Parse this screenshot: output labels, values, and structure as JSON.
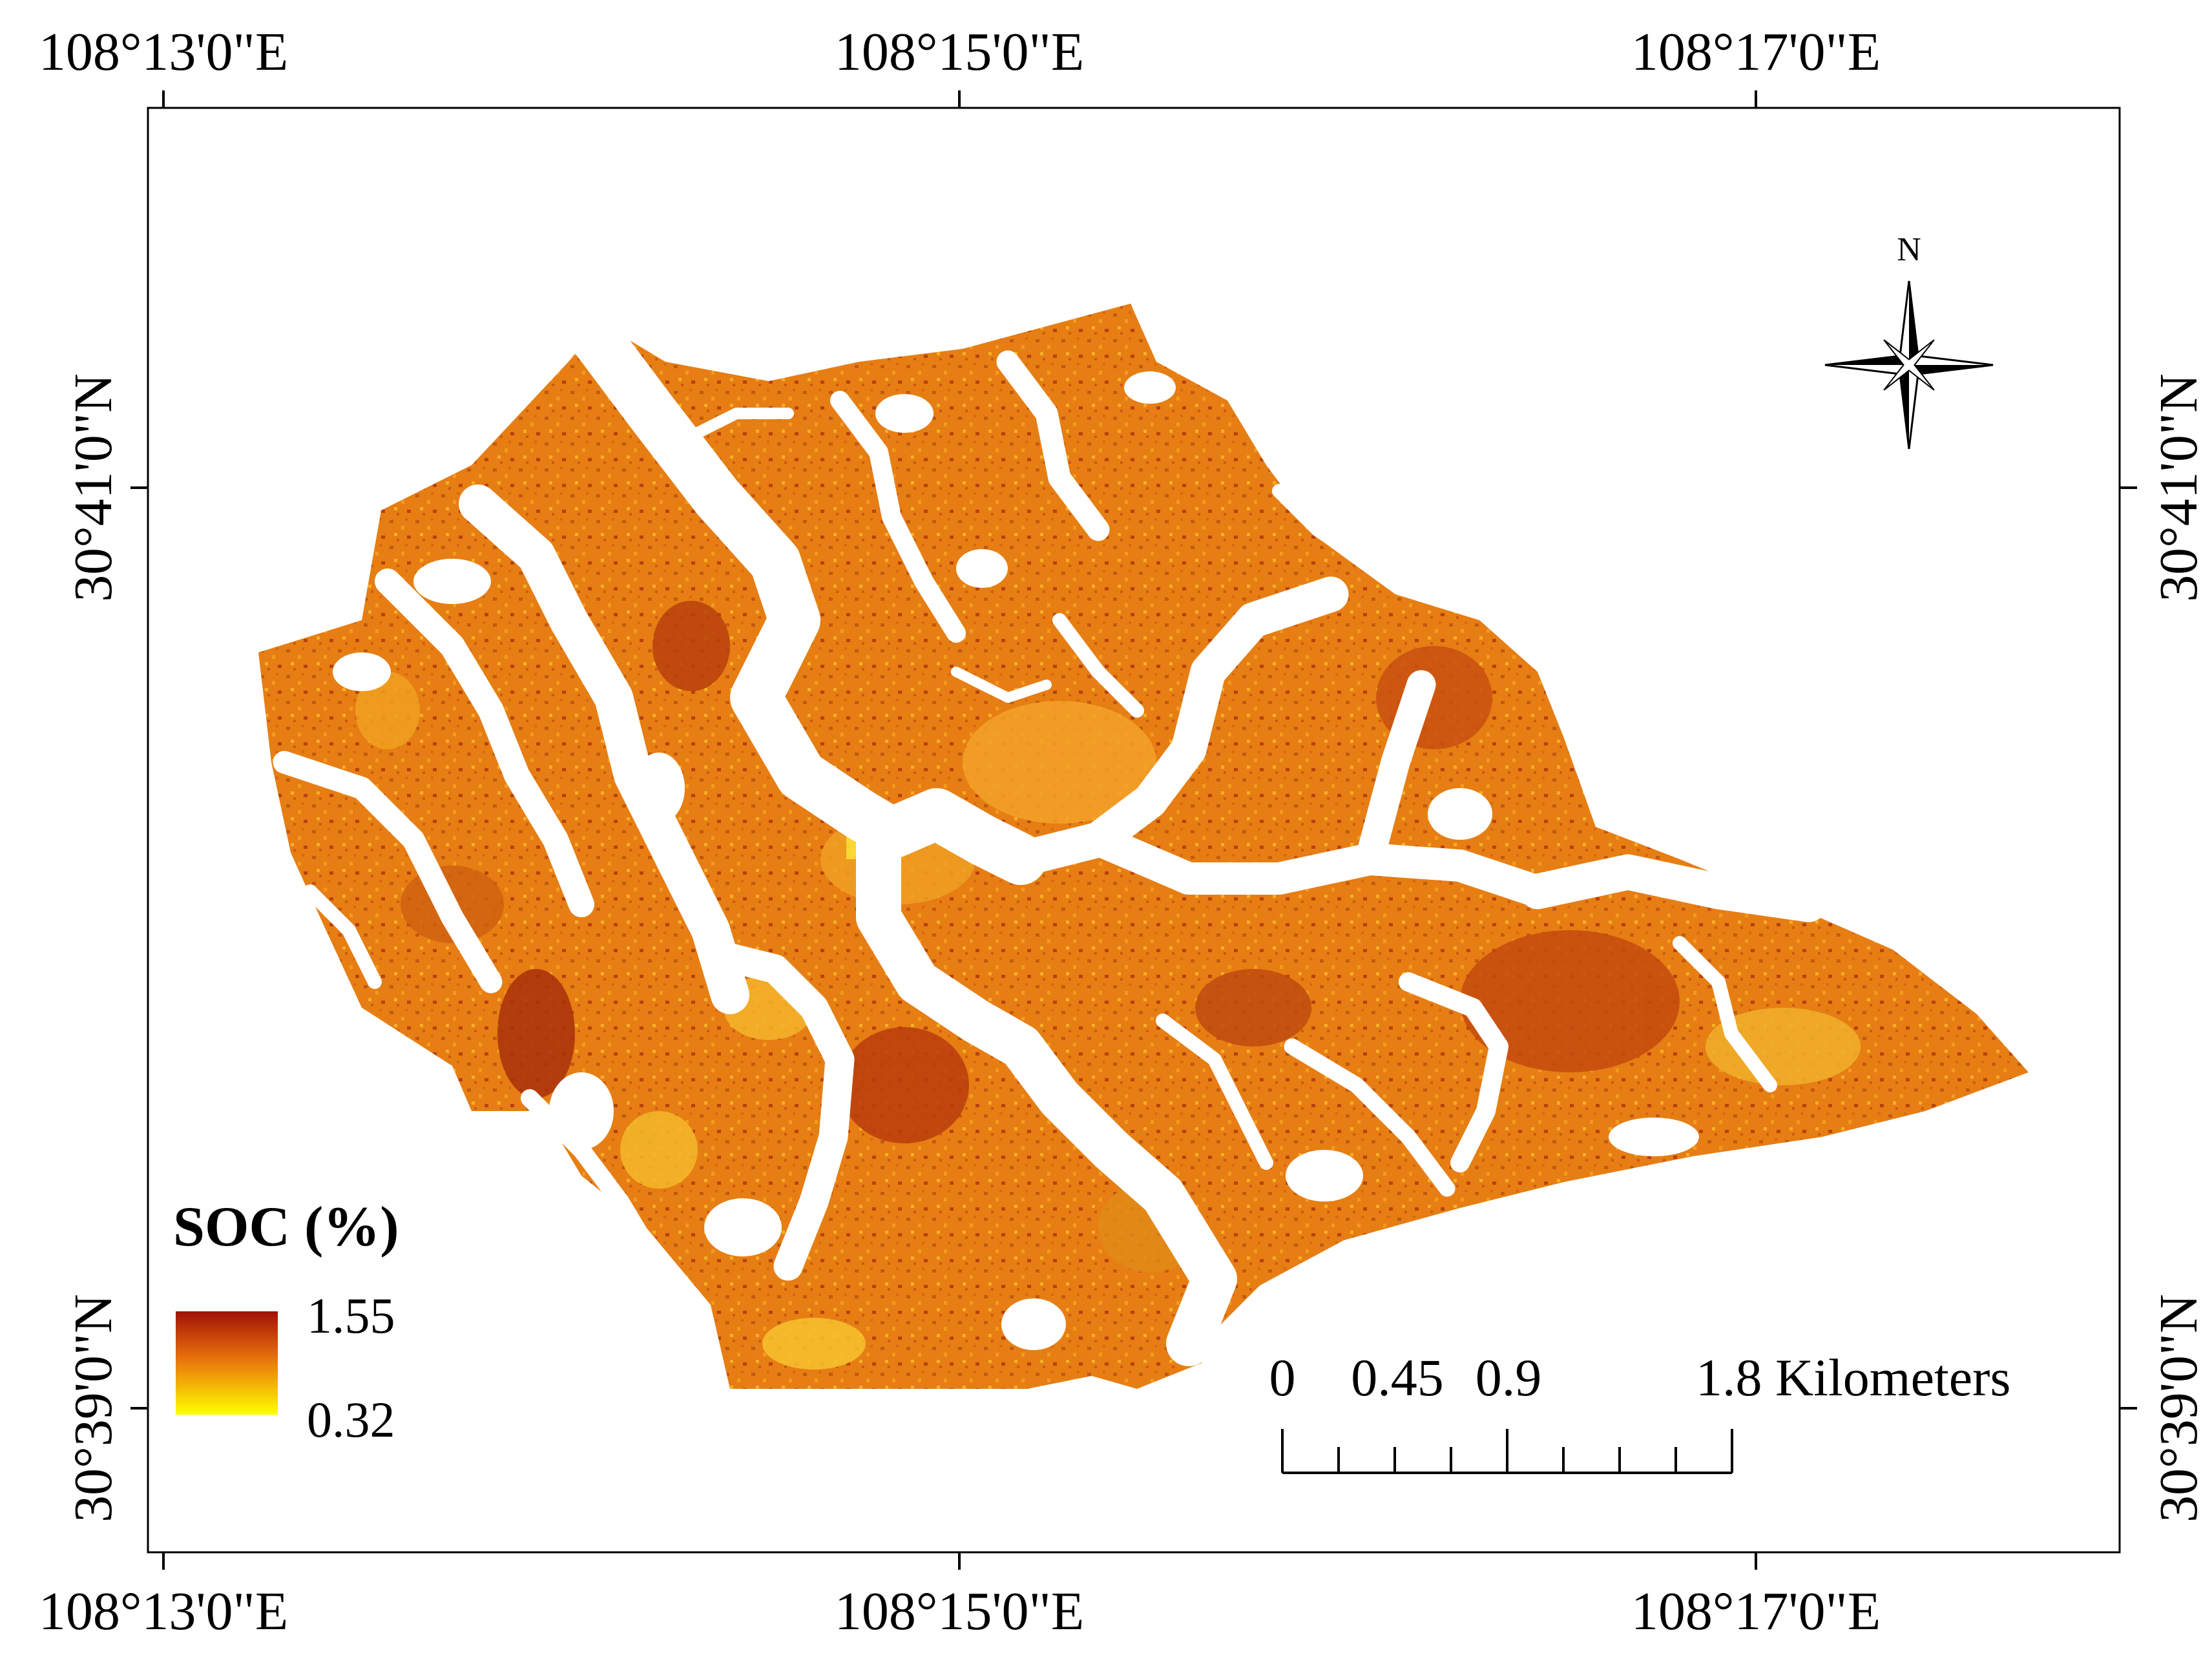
{
  "map": {
    "top_labels": [
      "108°13'0\"E",
      "108°15'0\"E",
      "108°17'0\"E"
    ],
    "bottom_labels": [
      "108°13'0\"E",
      "108°15'0\"E",
      "108°17'0\"E"
    ],
    "left_labels": [
      "30°41'0\"N",
      "30°39'0\"N"
    ],
    "right_labels": [
      "30°41'0\"N",
      "30°39'0\"N"
    ]
  },
  "legend": {
    "title": "SOC (%)",
    "max_label": "1.55",
    "min_label": "0.32",
    "color_high": "#a01206",
    "color_mid": "#e8700c",
    "color_low": "#ffff00"
  },
  "north_arrow": {
    "label": "N"
  },
  "scale_bar": {
    "labels": [
      "0",
      "0.45",
      "0.9",
      "1.8 Kilometers"
    ]
  },
  "colors": {
    "soc_dark": "#b33a0c",
    "soc_base": "#e67e14",
    "soc_light": "#f6b52a",
    "soc_pale": "#fadf30",
    "frame": "#000000"
  }
}
